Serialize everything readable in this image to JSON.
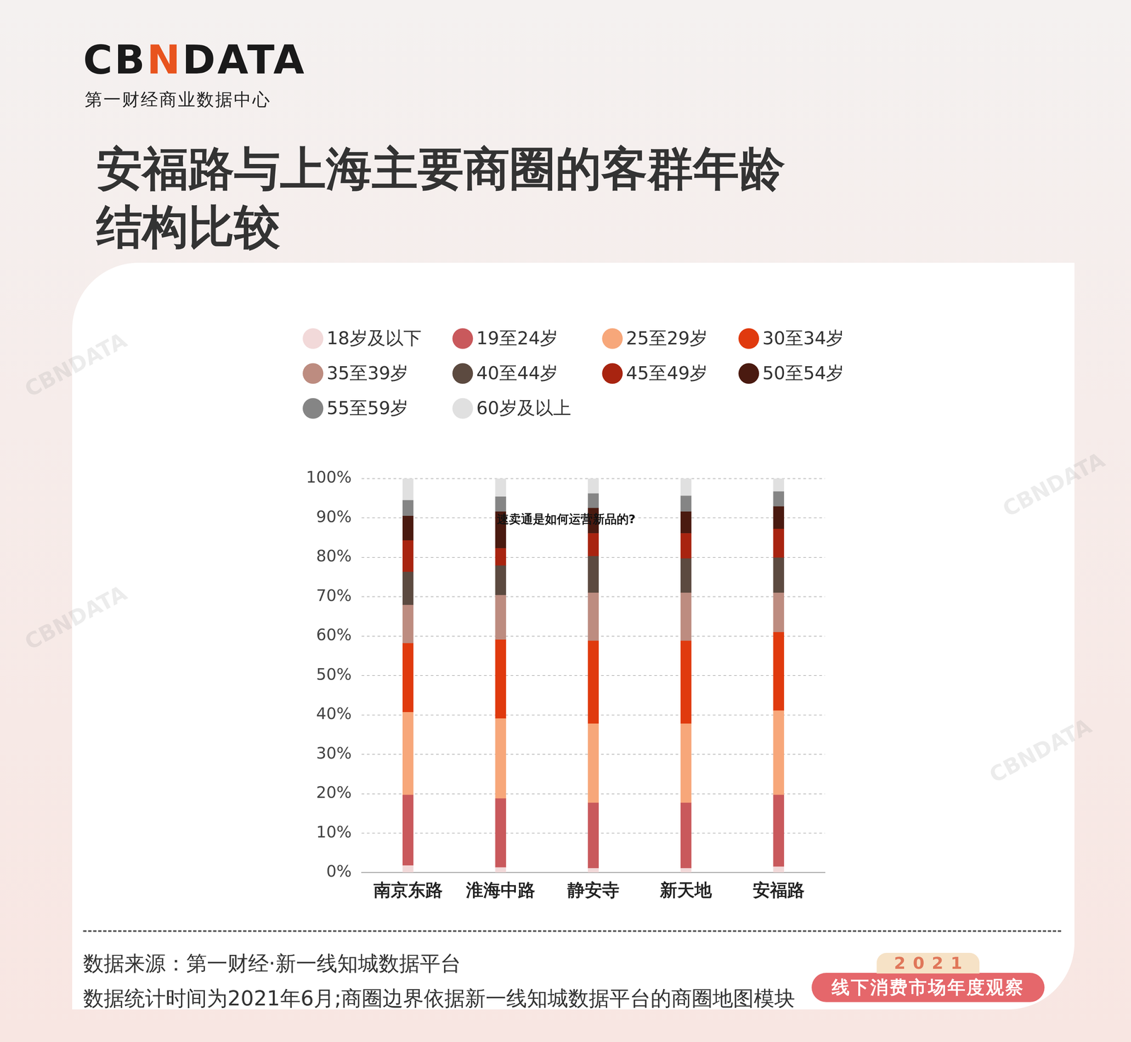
{
  "header": {
    "logo": "CBNDATA",
    "logo_subtitle": "第一财经商业数据中心"
  },
  "chart_data": {
    "type": "bar",
    "stacked": true,
    "title": "安福路与上海主要商圈的客群年龄结构比较",
    "categories": [
      "南京东路",
      "淮海中路",
      "静安寺",
      "新天地",
      "安福路"
    ],
    "series": [
      {
        "name": "18岁及以下",
        "color": "#f2d9d9",
        "values": [
          1.8,
          1.3,
          1.1,
          1.1,
          1.5
        ]
      },
      {
        "name": "19至24岁",
        "color": "#c9595c",
        "values": [
          17.9,
          17.5,
          16.6,
          16.6,
          18.2
        ]
      },
      {
        "name": "25至29岁",
        "color": "#f7a77a",
        "values": [
          21.0,
          20.3,
          20.1,
          20.1,
          21.4
        ]
      },
      {
        "name": "30至34岁",
        "color": "#e03a0e",
        "values": [
          17.5,
          20.0,
          21.0,
          21.0,
          19.9
        ]
      },
      {
        "name": "35至39岁",
        "color": "#bd8c80",
        "values": [
          9.7,
          11.3,
          12.2,
          12.2,
          10.0
        ]
      },
      {
        "name": "40至44岁",
        "color": "#5c4a40",
        "values": [
          8.4,
          7.5,
          9.3,
          8.7,
          8.9
        ]
      },
      {
        "name": "45至49岁",
        "color": "#a82410",
        "values": [
          8.0,
          4.4,
          5.8,
          6.4,
          7.3
        ]
      },
      {
        "name": "50至54岁",
        "color": "#4a1a10",
        "values": [
          6.2,
          9.3,
          6.4,
          5.5,
          5.7
        ]
      },
      {
        "name": "55至59岁",
        "color": "#858585",
        "values": [
          4.0,
          3.8,
          3.7,
          4.0,
          3.8
        ]
      },
      {
        "name": "60岁及以上",
        "color": "#e0e0e0",
        "values": [
          5.5,
          4.6,
          3.8,
          4.4,
          3.3
        ]
      }
    ],
    "ylim": [
      0,
      100
    ],
    "yticks": [
      {
        "value": 0,
        "label": "0%"
      },
      {
        "value": 10,
        "label": "10%"
      },
      {
        "value": 20,
        "label": "20%"
      },
      {
        "value": 30,
        "label": "30%"
      },
      {
        "value": 40,
        "label": "40%"
      },
      {
        "value": 50,
        "label": "50%"
      },
      {
        "value": 60,
        "label": "60%"
      },
      {
        "value": 70,
        "label": "70%"
      },
      {
        "value": 80,
        "label": "80%"
      },
      {
        "value": 90,
        "label": "90%"
      },
      {
        "value": 100,
        "label": "100%"
      }
    ],
    "grid": true,
    "legend": "top",
    "annotations": [
      "速卖通是如何运营新品的?"
    ]
  },
  "footer": {
    "source": "数据来源：第一财经·新一线知城数据平台",
    "note": "数据统计时间为2021年6月;商圈边界依据新一线知城数据平台的商圈地图模块"
  },
  "badge": {
    "year": "2021",
    "text": "线下消费市场年度观察"
  },
  "watermark": "CBNDATA"
}
